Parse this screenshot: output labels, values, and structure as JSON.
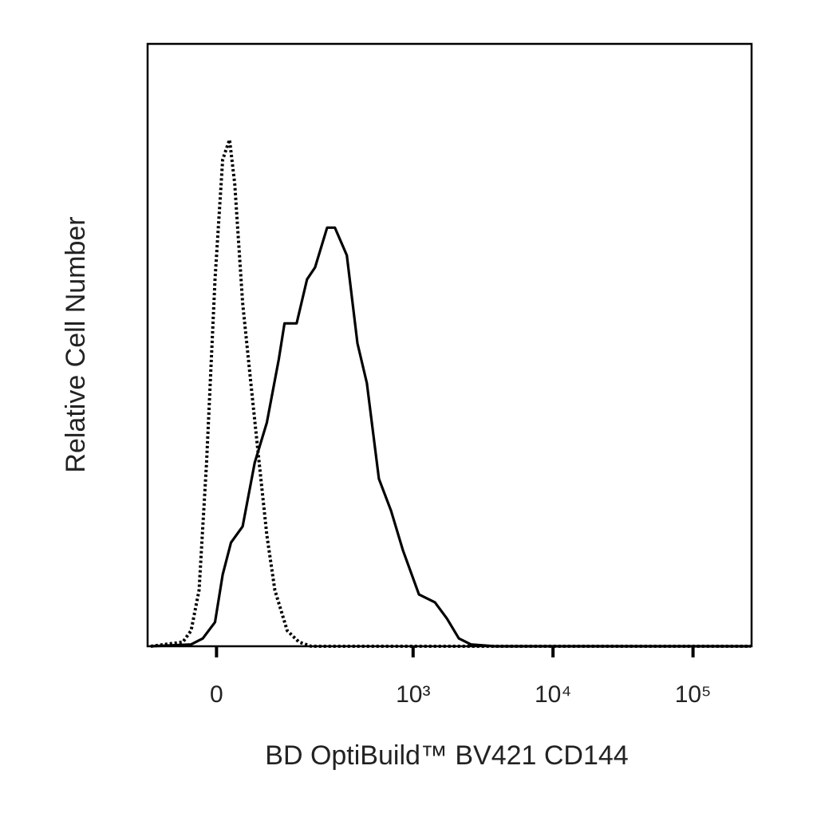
{
  "chart_data": {
    "type": "line",
    "xlabel": "BD OptiBuild™ BV421 CD144",
    "ylabel": "Relative Cell Number",
    "xscale": "asinh",
    "xlim": [
      -110,
      262000
    ],
    "xticks": [
      0,
      {
        "value": 1000,
        "label": "10³"
      },
      {
        "value": 10000,
        "label": "10⁴"
      },
      {
        "value": 100000,
        "label": "10⁵"
      }
    ],
    "ylim": [
      0,
      100
    ],
    "series": [
      {
        "color": "#000000",
        "style": "dotted",
        "x": [
          -103,
          -46,
          -34,
          -23,
          -13,
          -2,
          8,
          17,
          24,
          35,
          47,
          60,
          73,
          88,
          114,
          143,
          179,
          259000
        ],
        "values": [
          0,
          0.7,
          2.6,
          9.3,
          30.5,
          60.9,
          80.8,
          84.1,
          76.8,
          57,
          43.7,
          30.5,
          18.5,
          9.3,
          2.6,
          0.7,
          0,
          0
        ]
      },
      {
        "color": "#000000",
        "style": "solid",
        "x": [
          -103,
          -34,
          -18,
          -2,
          8,
          19,
          35,
          53,
          73,
          96,
          108,
          137,
          166,
          192,
          237,
          271,
          332,
          397,
          465,
          568,
          694,
          846,
          1101,
          1433,
          1746,
          2125,
          2590,
          3847,
          259000
        ],
        "values": [
          0,
          0.3,
          1.3,
          4,
          11.9,
          17.2,
          19.9,
          30.5,
          37.1,
          47.7,
          53.6,
          53.6,
          60.9,
          62.9,
          69.5,
          69.5,
          64.9,
          50.3,
          43.7,
          27.8,
          22.5,
          15.9,
          8.6,
          7.3,
          4.6,
          1.3,
          0.3,
          0,
          0
        ]
      }
    ]
  }
}
